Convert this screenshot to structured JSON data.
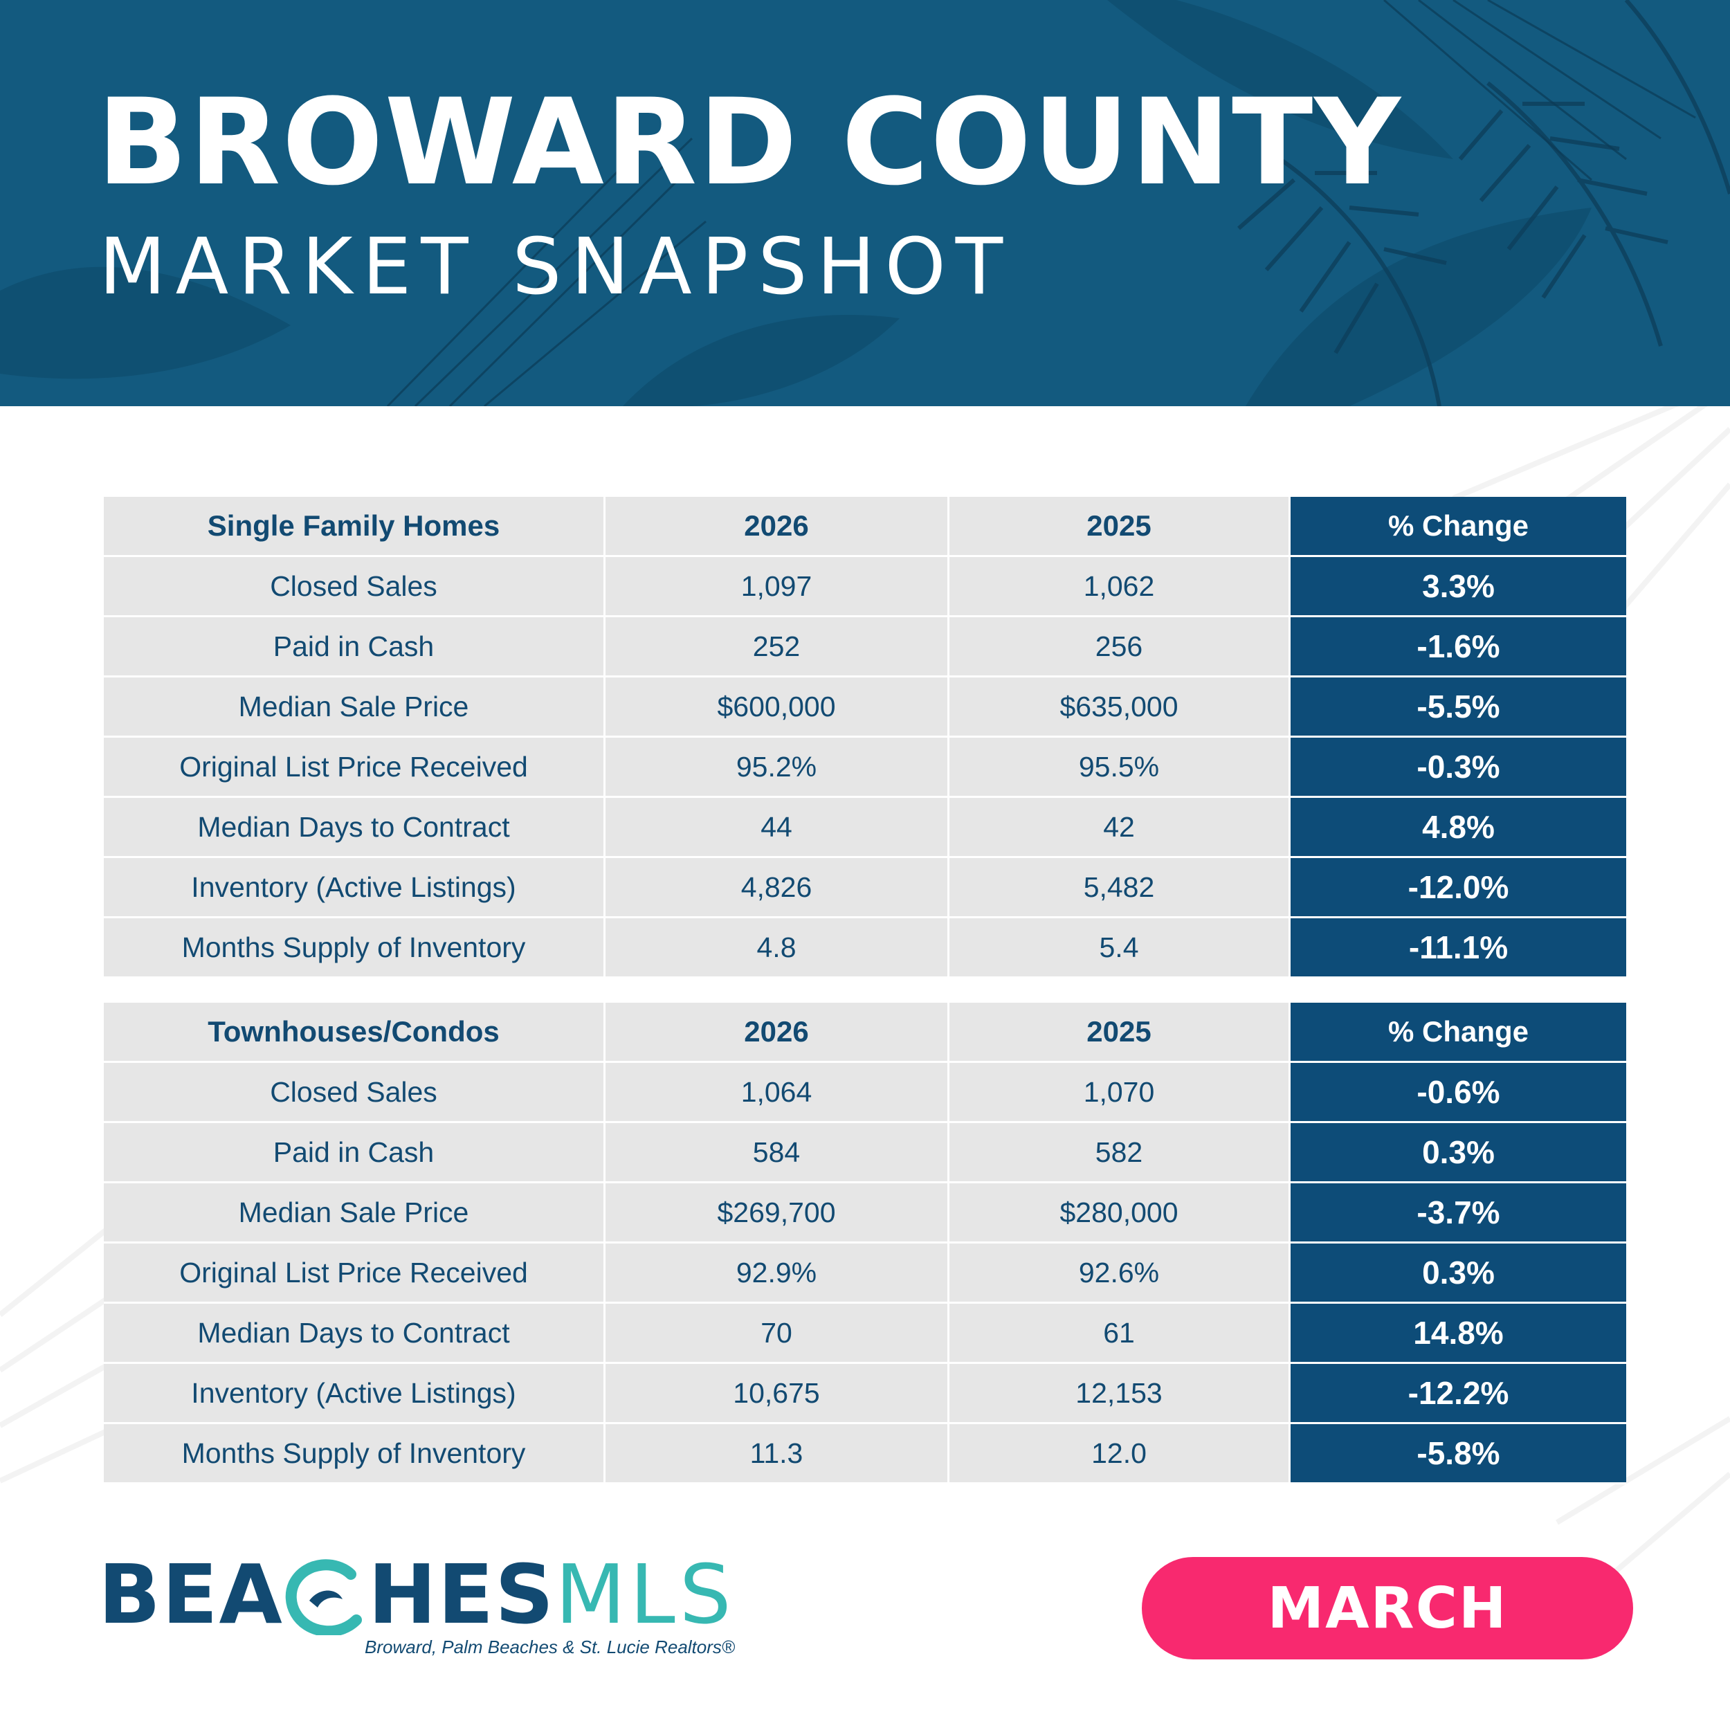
{
  "header": {
    "title": "BROWARD COUNTY",
    "subtitle": "MARKET SNAPSHOT"
  },
  "tables": [
    {
      "headers": [
        "Single Family Homes",
        "2026",
        "2025",
        "% Change"
      ],
      "rows": [
        [
          "Closed Sales",
          "1,097",
          "1,062",
          "3.3%"
        ],
        [
          "Paid in Cash",
          "252",
          "256",
          "-1.6%"
        ],
        [
          "Median Sale Price",
          "$600,000",
          "$635,000",
          "-5.5%"
        ],
        [
          "Original List Price Received",
          "95.2%",
          "95.5%",
          "-0.3%"
        ],
        [
          "Median Days to Contract",
          "44",
          "42",
          "4.8%"
        ],
        [
          "Inventory (Active Listings)",
          "4,826",
          "5,482",
          "-12.0%"
        ],
        [
          "Months Supply of Inventory",
          "4.8",
          "5.4",
          "-11.1%"
        ]
      ]
    },
    {
      "headers": [
        "Townhouses/Condos",
        "2026",
        "2025",
        "% Change"
      ],
      "rows": [
        [
          "Closed Sales",
          "1,064",
          "1,070",
          "-0.6%"
        ],
        [
          "Paid in Cash",
          "584",
          "582",
          "0.3%"
        ],
        [
          "Median Sale Price",
          "$269,700",
          "$280,000",
          "-3.7%"
        ],
        [
          "Original List Price Received",
          "92.9%",
          "92.6%",
          "0.3%"
        ],
        [
          "Median Days to Contract",
          "70",
          "61",
          "14.8%"
        ],
        [
          "Inventory (Active Listings)",
          "10,675",
          "12,153",
          "-12.2%"
        ],
        [
          "Months Supply of Inventory",
          "11.3",
          "12.0",
          "-5.8%"
        ]
      ]
    }
  ],
  "footer": {
    "logo_bold_a": "BEA",
    "logo_bold_b": "HES",
    "logo_light": "MLS",
    "tagline": "Broward, Palm Beaches & St. Lucie Realtors®",
    "month": "MARCH"
  },
  "colors": {
    "header_bg": "#135a7f",
    "navy": "#124a72",
    "change_bg": "#0d4c78",
    "cell_bg": "#e6e6e6",
    "teal": "#37b8b2",
    "pink": "#f8296f"
  },
  "icons": {
    "wave": "wave-c-icon",
    "decoration": "palm-leaf-decoration"
  }
}
